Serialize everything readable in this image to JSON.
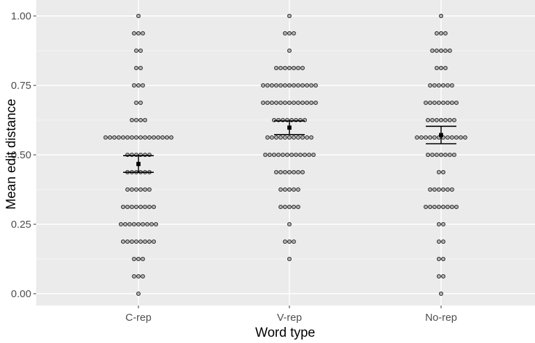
{
  "chart_data": {
    "type": "scatter",
    "subtype": "dotplot-with-mean-and-error-bars",
    "title": "",
    "xlabel": "Word type",
    "ylabel": "Mean edit distance",
    "categories": [
      "C-rep",
      "V-rep",
      "No-rep"
    ],
    "ylim": [
      0,
      1
    ],
    "yticks": [
      0,
      0.25,
      0.5,
      0.75,
      1
    ],
    "ytick_labels": [
      "0.00",
      "0.25",
      "0.50",
      "0.75",
      "1.00"
    ],
    "grid": true,
    "legend": "none",
    "colors": {
      "panel": "#ebebeb",
      "grid": "#ffffff",
      "point_fill": "#b3b3b3",
      "point_stroke": "#1a1a1a",
      "summary": "#000000"
    },
    "groups": [
      {
        "category": "C-rep",
        "mean": 0.467,
        "ci_low": 0.437,
        "ci_high": 0.497,
        "bins": [
          {
            "y": 1.0,
            "count": 1
          },
          {
            "y": 0.9375,
            "count": 3
          },
          {
            "y": 0.875,
            "count": 2
          },
          {
            "y": 0.8125,
            "count": 2
          },
          {
            "y": 0.75,
            "count": 3
          },
          {
            "y": 0.6875,
            "count": 2
          },
          {
            "y": 0.625,
            "count": 4
          },
          {
            "y": 0.5625,
            "count": 16
          },
          {
            "y": 0.5,
            "count": 6
          },
          {
            "y": 0.4375,
            "count": 6
          },
          {
            "y": 0.375,
            "count": 6
          },
          {
            "y": 0.3125,
            "count": 8
          },
          {
            "y": 0.25,
            "count": 9
          },
          {
            "y": 0.1875,
            "count": 8
          },
          {
            "y": 0.125,
            "count": 3
          },
          {
            "y": 0.0625,
            "count": 3
          },
          {
            "y": 0.0,
            "count": 1
          }
        ]
      },
      {
        "category": "V-rep",
        "mean": 0.598,
        "ci_low": 0.573,
        "ci_high": 0.622,
        "bins": [
          {
            "y": 1.0,
            "count": 1
          },
          {
            "y": 0.9375,
            "count": 3
          },
          {
            "y": 0.875,
            "count": 1
          },
          {
            "y": 0.8125,
            "count": 7
          },
          {
            "y": 0.75,
            "count": 13
          },
          {
            "y": 0.6875,
            "count": 13
          },
          {
            "y": 0.625,
            "count": 8
          },
          {
            "y": 0.5625,
            "count": 11
          },
          {
            "y": 0.5,
            "count": 12
          },
          {
            "y": 0.4375,
            "count": 7
          },
          {
            "y": 0.375,
            "count": 5
          },
          {
            "y": 0.3125,
            "count": 5
          },
          {
            "y": 0.25,
            "count": 1
          },
          {
            "y": 0.1875,
            "count": 3
          },
          {
            "y": 0.125,
            "count": 1
          }
        ]
      },
      {
        "category": "No-rep",
        "mean": 0.571,
        "ci_low": 0.54,
        "ci_high": 0.603,
        "bins": [
          {
            "y": 1.0,
            "count": 1
          },
          {
            "y": 0.9375,
            "count": 3
          },
          {
            "y": 0.875,
            "count": 5
          },
          {
            "y": 0.8125,
            "count": 3
          },
          {
            "y": 0.75,
            "count": 6
          },
          {
            "y": 0.6875,
            "count": 8
          },
          {
            "y": 0.625,
            "count": 7
          },
          {
            "y": 0.5625,
            "count": 12
          },
          {
            "y": 0.5,
            "count": 7
          },
          {
            "y": 0.4375,
            "count": 2
          },
          {
            "y": 0.375,
            "count": 6
          },
          {
            "y": 0.3125,
            "count": 8
          },
          {
            "y": 0.25,
            "count": 2
          },
          {
            "y": 0.1875,
            "count": 2
          },
          {
            "y": 0.125,
            "count": 2
          },
          {
            "y": 0.0625,
            "count": 2
          },
          {
            "y": 0.0,
            "count": 1
          }
        ]
      }
    ]
  }
}
